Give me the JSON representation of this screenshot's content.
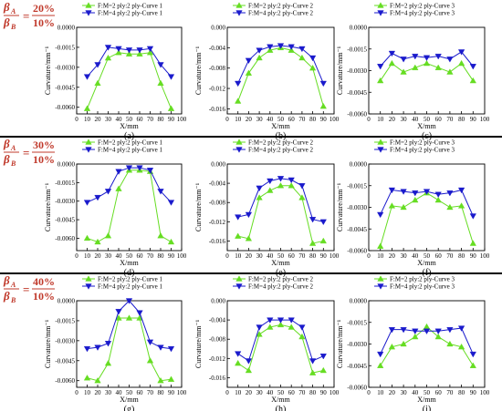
{
  "colors": {
    "series1": "#66dd22",
    "series2": "#1a1acc",
    "ratio_text": "#c0392b",
    "axis": "#000000",
    "separator": "#000000"
  },
  "rows": [
    {
      "label": {
        "num_sym": "β",
        "num_sub": "A",
        "den_sym": "β",
        "den_sub": "B",
        "num_val": "20%",
        "den_val": "10%"
      },
      "panels": [
        {
          "id": "a",
          "caption": "(a)",
          "chart_data": {
            "type": "line",
            "x": [
              10,
              20,
              30,
              40,
              50,
              60,
              70,
              80,
              90
            ],
            "xticks": [
              0,
              10,
              20,
              30,
              40,
              50,
              60,
              70,
              80,
              90,
              100
            ],
            "xlim": [
              0,
              100
            ],
            "ylim": [
              -0.0065,
              0.0
            ],
            "yticks": [
              -0.006,
              -0.0045,
              -0.003,
              -0.0015,
              0.0
            ],
            "yticklabels": [
              "-0.0060",
              "-0.0045",
              "-0.0030",
              "-0.0015",
              "0.0000"
            ],
            "xlabel": "X/mm",
            "ylabel": "Curvature/mm⁻¹",
            "legend": "top-center",
            "series": [
              {
                "name": "F:M=2 ply:2 ply-Curve 1",
                "marker": "triangle-up",
                "values": [
                  -0.0061,
                  -0.0042,
                  -0.0023,
                  -0.0019,
                  -0.002,
                  -0.002,
                  -0.0019,
                  -0.0042,
                  -0.0061
                ]
              },
              {
                "name": "F:M=4 ply:2 ply-Curve 1",
                "marker": "triangle-down",
                "values": [
                  -0.0037,
                  -0.0028,
                  -0.0015,
                  -0.0016,
                  -0.0017,
                  -0.0017,
                  -0.0016,
                  -0.0028,
                  -0.0037
                ]
              }
            ]
          }
        },
        {
          "id": "b",
          "caption": "(b)",
          "chart_data": {
            "type": "line",
            "x": [
              10,
              20,
              30,
              40,
              50,
              60,
              70,
              80,
              90
            ],
            "xticks": [
              0,
              10,
              20,
              30,
              40,
              50,
              60,
              70,
              80,
              90,
              100
            ],
            "xlim": [
              0,
              100
            ],
            "ylim": [
              -0.017,
              0.0
            ],
            "yticks": [
              -0.016,
              -0.012,
              -0.008,
              -0.004,
              0.0
            ],
            "yticklabels": [
              "-0.016",
              "-0.012",
              "-0.008",
              "-0.004",
              "0.000"
            ],
            "xlabel": "X/mm",
            "ylabel": "Curvature/mm⁻¹",
            "legend": "top-center",
            "series": [
              {
                "name": "F:M=2 ply:2 ply-Curve 2",
                "marker": "triangle-up",
                "values": [
                  -0.0145,
                  -0.009,
                  -0.006,
                  -0.0045,
                  -0.004,
                  -0.0045,
                  -0.006,
                  -0.008,
                  -0.0155
                ]
              },
              {
                "name": "F:M=4 ply:2 ply-Curve 2",
                "marker": "triangle-down",
                "values": [
                  -0.011,
                  -0.0065,
                  -0.0045,
                  -0.0038,
                  -0.0036,
                  -0.0038,
                  -0.0042,
                  -0.006,
                  -0.011
                ]
              }
            ]
          }
        },
        {
          "id": "c",
          "caption": "(c)",
          "chart_data": {
            "type": "line",
            "x": [
              10,
              20,
              30,
              40,
              50,
              60,
              70,
              80,
              90
            ],
            "xticks": [
              0,
              10,
              20,
              30,
              40,
              50,
              60,
              70,
              80,
              90,
              100
            ],
            "xlim": [
              0,
              100
            ],
            "ylim": [
              -0.006,
              0.0
            ],
            "yticks": [
              -0.006,
              -0.0045,
              -0.003,
              -0.0015,
              0.0
            ],
            "yticklabels": [
              "-0.0060",
              "-0.0045",
              "-0.0030",
              "-0.0015",
              "0.0000"
            ],
            "xlabel": "X/mm",
            "ylabel": "Curvature/mm⁻¹",
            "legend": "top-center",
            "series": [
              {
                "name": "F:M=2 ply:2 ply-Curve 3",
                "marker": "triangle-up",
                "values": [
                  -0.0037,
                  -0.0025,
                  -0.0031,
                  -0.0028,
                  -0.0025,
                  -0.0028,
                  -0.0031,
                  -0.0025,
                  -0.0037
                ]
              },
              {
                "name": "F:M=4 ply:2 ply-Curve 3",
                "marker": "triangle-down",
                "values": [
                  -0.0027,
                  -0.0018,
                  -0.0022,
                  -0.002,
                  -0.0021,
                  -0.002,
                  -0.0022,
                  -0.0017,
                  -0.0027
                ]
              }
            ]
          }
        }
      ]
    },
    {
      "label": {
        "num_sym": "β",
        "num_sub": "A",
        "den_sym": "β",
        "den_sub": "B",
        "num_val": "30%",
        "den_val": "10%"
      },
      "panels": [
        {
          "id": "d",
          "caption": "(d)",
          "chart_data": {
            "type": "line",
            "x": [
              10,
              20,
              30,
              40,
              50,
              60,
              70,
              80,
              90
            ],
            "xticks": [
              0,
              10,
              20,
              30,
              40,
              50,
              60,
              70,
              80,
              90,
              100
            ],
            "xlim": [
              0,
              100
            ],
            "ylim": [
              -0.007,
              0.0
            ],
            "yticks": [
              -0.006,
              -0.0045,
              -0.003,
              -0.0015,
              0.0
            ],
            "yticklabels": [
              "-0.0060",
              "-0.0045",
              "-0.0030",
              "-0.0015",
              "0.0000"
            ],
            "xlabel": "X/mm",
            "ylabel": "Curvature/mm⁻¹",
            "legend": "top-center",
            "series": [
              {
                "name": "F:M=2 ply:2 ply-Curve 1",
                "marker": "triangle-up",
                "values": [
                  -0.006,
                  -0.0063,
                  -0.0058,
                  -0.002,
                  -0.0005,
                  -0.0005,
                  -0.0006,
                  -0.0058,
                  -0.0063
                ]
              },
              {
                "name": "F:M=4 ply:2 ply-Curve 1",
                "marker": "triangle-down",
                "values": [
                  -0.0031,
                  -0.0027,
                  -0.0022,
                  -0.0006,
                  -0.0003,
                  -0.0003,
                  -0.0005,
                  -0.0022,
                  -0.0031
                ]
              }
            ]
          }
        },
        {
          "id": "e",
          "caption": "(e)",
          "chart_data": {
            "type": "line",
            "x": [
              10,
              20,
              30,
              40,
              50,
              60,
              70,
              80,
              90
            ],
            "xticks": [
              0,
              10,
              20,
              30,
              40,
              50,
              60,
              70,
              80,
              90,
              100
            ],
            "xlim": [
              0,
              100
            ],
            "ylim": [
              -0.018,
              0.0
            ],
            "yticks": [
              -0.016,
              -0.012,
              -0.008,
              -0.004,
              0.0
            ],
            "yticklabels": [
              "-0.016",
              "-0.012",
              "-0.008",
              "-0.004",
              "0.000"
            ],
            "xlabel": "X/mm",
            "ylabel": "Curvature/mm⁻¹",
            "legend": "top-center",
            "series": [
              {
                "name": "F:M=2 ply:2 ply-Curve 2",
                "marker": "triangle-up",
                "values": [
                  -0.015,
                  -0.0155,
                  -0.007,
                  -0.0055,
                  -0.0045,
                  -0.0045,
                  -0.007,
                  -0.0165,
                  -0.016
                ]
              },
              {
                "name": "F:M=4 ply:2 ply-Curve 2",
                "marker": "triangle-down",
                "values": [
                  -0.011,
                  -0.0105,
                  -0.005,
                  -0.0035,
                  -0.003,
                  -0.0033,
                  -0.0045,
                  -0.0115,
                  -0.012
                ]
              }
            ]
          }
        },
        {
          "id": "f",
          "caption": "(f)",
          "chart_data": {
            "type": "line",
            "x": [
              10,
              20,
              30,
              40,
              50,
              60,
              70,
              80,
              90
            ],
            "xticks": [
              0,
              10,
              20,
              30,
              40,
              50,
              60,
              70,
              80,
              90,
              100
            ],
            "xlim": [
              0,
              100
            ],
            "ylim": [
              -0.006,
              0.0
            ],
            "yticks": [
              -0.006,
              -0.0045,
              -0.003,
              -0.0015,
              0.0
            ],
            "yticklabels": [
              "-0.0060",
              "-0.0045",
              "-0.0030",
              "-0.0015",
              "0.0000"
            ],
            "xlabel": "X/mm",
            "ylabel": "Curvature/mm⁻¹",
            "legend": "top-center",
            "series": [
              {
                "name": "F:M=2 ply:2 ply-Curve 3",
                "marker": "triangle-up",
                "values": [
                  -0.0057,
                  -0.0029,
                  -0.003,
                  -0.0025,
                  -0.002,
                  -0.0025,
                  -0.003,
                  -0.0029,
                  -0.0055
                ]
              },
              {
                "name": "F:M=4 ply:2 ply-Curve 3",
                "marker": "triangle-down",
                "values": [
                  -0.0035,
                  -0.0018,
                  -0.0019,
                  -0.002,
                  -0.0019,
                  -0.0021,
                  -0.002,
                  -0.0018,
                  -0.0036
                ]
              }
            ]
          }
        }
      ]
    },
    {
      "label": {
        "num_sym": "β",
        "num_sub": "A",
        "den_sym": "β",
        "den_sub": "B",
        "num_val": "40%",
        "den_val": "10%"
      },
      "panels": [
        {
          "id": "g",
          "caption": "(g)",
          "chart_data": {
            "type": "line",
            "x": [
              10,
              20,
              30,
              40,
              50,
              60,
              70,
              80,
              90
            ],
            "xticks": [
              0,
              10,
              20,
              30,
              40,
              50,
              60,
              70,
              80,
              90,
              100
            ],
            "xlim": [
              0,
              100
            ],
            "ylim": [
              -0.0065,
              0.0
            ],
            "yticks": [
              -0.006,
              -0.0045,
              -0.003,
              -0.0015,
              0.0
            ],
            "yticklabels": [
              "-0.0060",
              "-0.0045",
              "-0.0030",
              "-0.0015",
              "0.0000"
            ],
            "xlabel": "X/mm",
            "ylabel": "Curvature/mm⁻¹",
            "legend": "top-center",
            "series": [
              {
                "name": "F:M=2 ply:2 ply-Curve 1",
                "marker": "triangle-up",
                "values": [
                  -0.0058,
                  -0.006,
                  -0.0047,
                  -0.0013,
                  -0.0013,
                  -0.0013,
                  -0.0045,
                  -0.006,
                  -0.0059
                ]
              },
              {
                "name": "F:M=4 ply:2 ply-Curve 1",
                "marker": "triangle-down",
                "values": [
                  -0.0036,
                  -0.0035,
                  -0.0032,
                  -0.0008,
                  0.0,
                  -0.0009,
                  -0.0031,
                  -0.0035,
                  -0.0036
                ]
              }
            ]
          }
        },
        {
          "id": "h",
          "caption": "(h)",
          "chart_data": {
            "type": "line",
            "x": [
              10,
              20,
              30,
              40,
              50,
              60,
              70,
              80,
              90
            ],
            "xticks": [
              0,
              10,
              20,
              30,
              40,
              50,
              60,
              70,
              80,
              90,
              100
            ],
            "xlim": [
              0,
              100
            ],
            "ylim": [
              -0.018,
              0.0
            ],
            "yticks": [
              -0.016,
              -0.012,
              -0.008,
              -0.004,
              0.0
            ],
            "yticklabels": [
              "-0.016",
              "-0.012",
              "-0.008",
              "-0.004",
              "0.000"
            ],
            "xlabel": "X/mm",
            "ylabel": "Curvature/mm⁻¹",
            "legend": "top-center",
            "series": [
              {
                "name": "F:M=2 ply:2 ply-Curve 2",
                "marker": "triangle-up",
                "values": [
                  -0.013,
                  -0.0145,
                  -0.007,
                  -0.0055,
                  -0.005,
                  -0.0055,
                  -0.0075,
                  -0.015,
                  -0.0145
                ]
              },
              {
                "name": "F:M=4 ply:2 ply-Curve 2",
                "marker": "triangle-down",
                "values": [
                  -0.011,
                  -0.0125,
                  -0.0055,
                  -0.004,
                  -0.004,
                  -0.004,
                  -0.0055,
                  -0.0125,
                  -0.0115
                ]
              }
            ]
          }
        },
        {
          "id": "i",
          "caption": "(i)",
          "chart_data": {
            "type": "line",
            "x": [
              10,
              20,
              30,
              40,
              50,
              60,
              70,
              80,
              90
            ],
            "xticks": [
              0,
              10,
              20,
              30,
              40,
              50,
              60,
              70,
              80,
              90,
              100
            ],
            "xlim": [
              0,
              100
            ],
            "ylim": [
              -0.006,
              0.0
            ],
            "yticks": [
              -0.006,
              -0.0045,
              -0.003,
              -0.0015,
              0.0
            ],
            "yticklabels": [
              "-0.0060",
              "-0.0045",
              "-0.0030",
              "-0.0015",
              "0.0000"
            ],
            "xlabel": "X/mm",
            "ylabel": "Curvature/mm⁻¹",
            "legend": "top-center",
            "series": [
              {
                "name": "F:M=2 ply:2 ply-Curve 3",
                "marker": "triangle-up",
                "values": [
                  -0.0045,
                  -0.0032,
                  -0.003,
                  -0.0025,
                  -0.0018,
                  -0.0025,
                  -0.003,
                  -0.0032,
                  -0.0045
                ]
              },
              {
                "name": "F:M=4 ply:2 ply-Curve 3",
                "marker": "triangle-down",
                "values": [
                  -0.0037,
                  -0.002,
                  -0.002,
                  -0.0021,
                  -0.0021,
                  -0.0021,
                  -0.002,
                  -0.0019,
                  -0.0037
                ]
              }
            ]
          }
        }
      ]
    }
  ]
}
